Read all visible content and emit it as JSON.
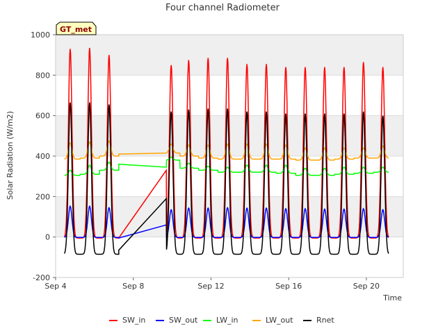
{
  "chart_data": {
    "type": "line",
    "title": "Four channel Radiometer",
    "xlabel": "Time",
    "ylabel": "Solar Radiation (W/m2)",
    "badge": "GT_met",
    "xlim": [
      4.0,
      21.9
    ],
    "ylim": [
      -200,
      1000
    ],
    "x_ticks": [
      {
        "x": 4,
        "label": "Sep 4"
      },
      {
        "x": 8,
        "label": "Sep 8"
      },
      {
        "x": 12,
        "label": "Sep 12"
      },
      {
        "x": 16,
        "label": "Sep 16"
      },
      {
        "x": 20,
        "label": "Sep 20"
      }
    ],
    "y_ticks": [
      -200,
      0,
      200,
      400,
      600,
      800,
      1000
    ],
    "grid": "horizontal shaded bands",
    "legend_position": "bottom",
    "peak_days": [
      4.75,
      5.75,
      6.75,
      9.95,
      10.85,
      11.85,
      12.85,
      13.85,
      14.85,
      15.85,
      16.85,
      17.85,
      18.85,
      19.85,
      20.85
    ],
    "gap": {
      "start": 7.25,
      "end": 9.7
    },
    "series": [
      {
        "name": "SW_in",
        "color": "#ff0000",
        "night": -5,
        "peaks": [
          930,
          935,
          900,
          850,
          875,
          885,
          885,
          855,
          855,
          840,
          840,
          840,
          840,
          865,
          840
        ],
        "gap_start": -5,
        "gap_end": 330
      },
      {
        "name": "SW_out",
        "color": "#0000ff",
        "night": -2,
        "peaks": [
          152,
          152,
          145,
          135,
          143,
          143,
          145,
          143,
          143,
          140,
          140,
          138,
          138,
          140,
          135
        ],
        "gap_start": -5,
        "gap_end": 60
      },
      {
        "name": "LW_in",
        "color": "#00ff00",
        "base": [
          305,
          310,
          330,
          380,
          340,
          330,
          320,
          320,
          320,
          315,
          305,
          305,
          310,
          315,
          320
        ],
        "peaks": [
          330,
          355,
          370,
          395,
          365,
          350,
          345,
          355,
          355,
          355,
          340,
          340,
          345,
          345,
          345
        ],
        "gap_start": 360,
        "gap_end": 345
      },
      {
        "name": "LW_out",
        "color": "#ffa500",
        "base": [
          385,
          390,
          400,
          415,
          400,
          390,
          385,
          385,
          385,
          385,
          380,
          380,
          385,
          390,
          390
        ],
        "peaks": [
          465,
          470,
          475,
          460,
          455,
          455,
          460,
          460,
          460,
          455,
          440,
          440,
          440,
          440,
          450
        ],
        "gap_start": 410,
        "gap_end": 415
      },
      {
        "name": "Rnet",
        "color": "#000000",
        "night": -85,
        "peaks": [
          665,
          665,
          655,
          620,
          630,
          635,
          635,
          620,
          620,
          610,
          610,
          610,
          610,
          620,
          600
        ],
        "gap_start": -65,
        "gap_end": 190
      }
    ]
  }
}
